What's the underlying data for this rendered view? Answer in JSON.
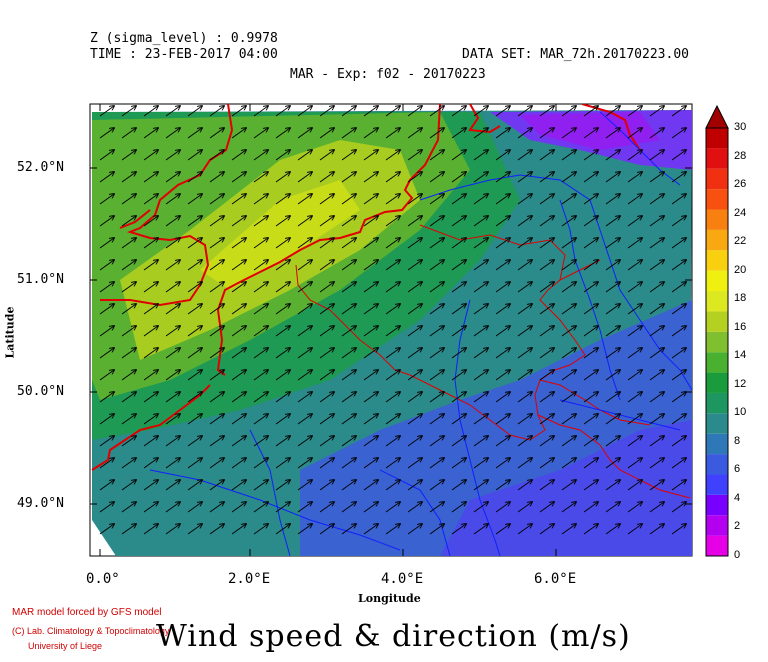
{
  "header": {
    "z_level": "Z (sigma_level) : 0.9978",
    "time": "TIME : 23-FEB-2017 04:00",
    "dataset": "DATA SET: MAR_72h.20170223.00",
    "experiment": "MAR - Exp: f02 - 20170223"
  },
  "axes": {
    "ylabel": "Latitude",
    "xlabel": "Longitude",
    "y_ticks": [
      "52.0°N",
      "51.0°N",
      "50.0°N",
      "49.0°N"
    ],
    "x_ticks": [
      "0.0°",
      "2.0°E",
      "4.0°E",
      "6.0°E"
    ],
    "lat_range": [
      48.55,
      52.5
    ],
    "lon_range": [
      -0.2,
      7.5
    ]
  },
  "colorbar": {
    "labels": [
      "0",
      "2",
      "4",
      "6",
      "8",
      "10",
      "12",
      "14",
      "16",
      "18",
      "20",
      "22",
      "24",
      "26",
      "28",
      "30"
    ],
    "colors": [
      "#e600e6",
      "#b400f0",
      "#7800ff",
      "#4040ff",
      "#3a5ae0",
      "#2f78b8",
      "#2a8a8c",
      "#1e9660",
      "#1a9c3c",
      "#4ab030",
      "#80c030",
      "#b4d020",
      "#dce820",
      "#f0f010",
      "#f8d010",
      "#f8a810",
      "#f88010",
      "#f85010",
      "#f03010",
      "#e01010",
      "#c00000"
    ],
    "max_marker": "#a00000"
  },
  "credits": {
    "line1": "MAR model forced by GFS model",
    "line2": "(C) Lab. Climatology & Topoclimatology",
    "line3": "University of Liege"
  },
  "title": "Wind speed & direction (m/s)"
}
